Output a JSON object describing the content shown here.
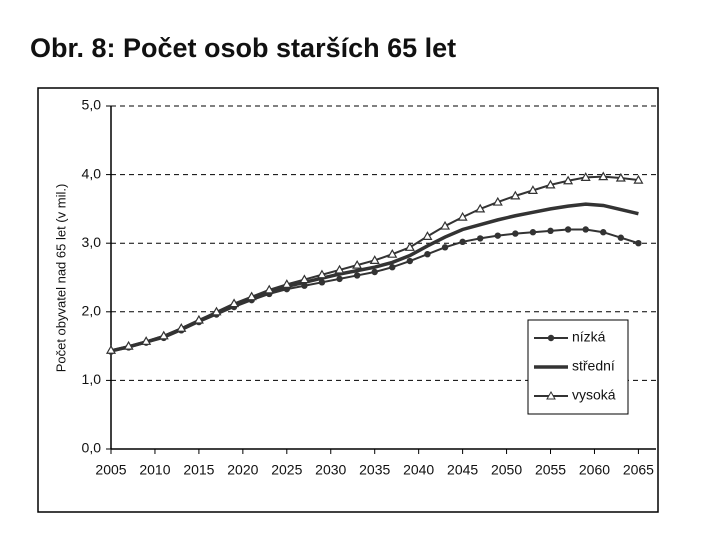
{
  "chart_data": {
    "type": "line",
    "title": "Obr. 8: Počet osob starších 65 let",
    "y_label": "Počet obyvatel  nad 65 let (v mil.)",
    "x": [
      2005,
      2007,
      2009,
      2011,
      2013,
      2015,
      2017,
      2019,
      2021,
      2023,
      2025,
      2027,
      2029,
      2031,
      2033,
      2035,
      2037,
      2039,
      2041,
      2043,
      2045,
      2047,
      2049,
      2051,
      2053,
      2055,
      2057,
      2059,
      2061,
      2063,
      2065
    ],
    "xlim": [
      2005,
      2067
    ],
    "xticks": [
      2005,
      2010,
      2015,
      2020,
      2025,
      2030,
      2035,
      2040,
      2045,
      2050,
      2055,
      2060,
      2065
    ],
    "ylim": [
      0,
      5
    ],
    "yticks": [
      {
        "value": 0,
        "label": "0,0"
      },
      {
        "value": 1,
        "label": "1,0"
      },
      {
        "value": 2,
        "label": "2,0"
      },
      {
        "value": 3,
        "label": "3,0"
      },
      {
        "value": 4,
        "label": "4,0"
      },
      {
        "value": 5,
        "label": "5,0"
      }
    ],
    "grid": true,
    "legend": "lower right",
    "series": [
      {
        "name": "nízká",
        "color": "#333333",
        "marker": "circle",
        "values": [
          1.42,
          1.48,
          1.55,
          1.62,
          1.73,
          1.85,
          1.96,
          2.07,
          2.17,
          2.26,
          2.33,
          2.38,
          2.43,
          2.48,
          2.53,
          2.58,
          2.65,
          2.74,
          2.84,
          2.94,
          3.02,
          3.07,
          3.11,
          3.14,
          3.16,
          3.18,
          3.2,
          3.2,
          3.16,
          3.08,
          3.0
        ]
      },
      {
        "name": "střední",
        "color": "#333333",
        "marker": "none",
        "values": [
          1.43,
          1.49,
          1.56,
          1.64,
          1.75,
          1.87,
          1.98,
          2.1,
          2.2,
          2.29,
          2.37,
          2.43,
          2.49,
          2.55,
          2.6,
          2.65,
          2.72,
          2.82,
          2.96,
          3.09,
          3.2,
          3.27,
          3.34,
          3.4,
          3.45,
          3.5,
          3.54,
          3.57,
          3.55,
          3.49,
          3.43
        ]
      },
      {
        "name": "vysoká",
        "color": "#333333",
        "marker": "triangle",
        "values": [
          1.44,
          1.5,
          1.57,
          1.65,
          1.76,
          1.88,
          2.0,
          2.12,
          2.22,
          2.32,
          2.4,
          2.47,
          2.54,
          2.61,
          2.68,
          2.75,
          2.84,
          2.94,
          3.1,
          3.25,
          3.38,
          3.5,
          3.6,
          3.69,
          3.77,
          3.85,
          3.91,
          3.96,
          3.97,
          3.95,
          3.92
        ]
      }
    ]
  }
}
